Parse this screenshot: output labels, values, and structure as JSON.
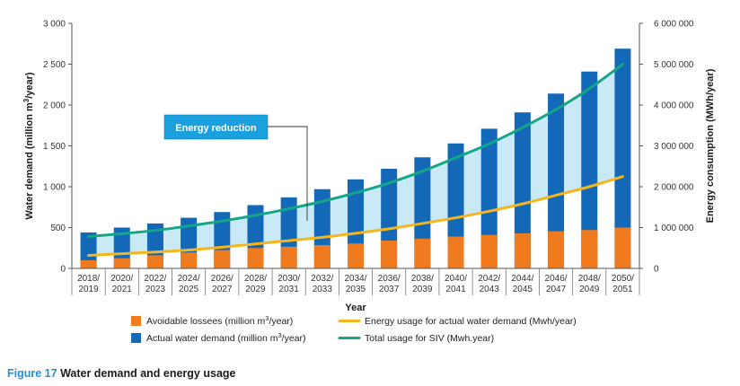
{
  "colors": {
    "avoidable": "#f07a1e",
    "actual": "#1468b8",
    "energy_actual": "#f5b61c",
    "total_siv": "#15a589",
    "band": "#c9e9f6",
    "annotation_box": "#1aa0de"
  },
  "chart_data": {
    "type": "bar",
    "categories": [
      [
        "2018/",
        "2019"
      ],
      [
        "2020/",
        "2021"
      ],
      [
        "2022/",
        "2023"
      ],
      [
        "2024/",
        "2025"
      ],
      [
        "2026/",
        "2027"
      ],
      [
        "2028/",
        "2029"
      ],
      [
        "2030/",
        "2031"
      ],
      [
        "2032/",
        "2033"
      ],
      [
        "2034/",
        "2035"
      ],
      [
        "2036/",
        "2037"
      ],
      [
        "2038/",
        "2039"
      ],
      [
        "2040/",
        "2041"
      ],
      [
        "2042/",
        "2043"
      ],
      [
        "2044/",
        "2045"
      ],
      [
        "2046/",
        "2047"
      ],
      [
        "2048/",
        "2049"
      ],
      [
        "2050/",
        "2051"
      ]
    ],
    "xlabel": "Year",
    "ylabel_left": {
      "pre": "Water demand (million m",
      "sup": "3",
      "post": "/year)"
    },
    "ylabel_right": "Energy consumption (MWh/year)",
    "ylim_left": [
      0,
      3000
    ],
    "ylim_right": [
      0,
      6000000
    ],
    "yticks_left": [
      "0",
      "500",
      "1 000",
      "1 500",
      "2 000",
      "2 500",
      "3 000"
    ],
    "yticks_right": [
      "0",
      "1 000 000",
      "2 000 000",
      "3 000 000",
      "4 000 000",
      "5 000 000",
      "6 000 000"
    ],
    "series": [
      {
        "name": "Avoidable lossees (million m3/year)",
        "type": "bar",
        "values": [
          100,
          125,
          160,
          195,
          225,
          250,
          265,
          285,
          305,
          340,
          365,
          390,
          410,
          430,
          455,
          470,
          500
        ]
      },
      {
        "name": "Actual water demand (million m3/year)",
        "type": "bar",
        "values": [
          440,
          500,
          550,
          620,
          690,
          775,
          870,
          970,
          1090,
          1220,
          1360,
          1530,
          1710,
          1910,
          2140,
          2410,
          2690
        ]
      },
      {
        "name": "Energy usage for actual water demand (Mwh/year)",
        "type": "line",
        "axis": "right",
        "values": [
          320000,
          360000,
          400000,
          450000,
          520000,
          600000,
          680000,
          760000,
          860000,
          970000,
          1100000,
          1240000,
          1400000,
          1580000,
          1790000,
          2000000,
          2250000
        ]
      },
      {
        "name": "Total usage for SIV (Mwh.year)",
        "type": "line",
        "axis": "right",
        "values": [
          780000,
          850000,
          930000,
          1040000,
          1160000,
          1300000,
          1460000,
          1640000,
          1850000,
          2090000,
          2380000,
          2710000,
          3050000,
          3450000,
          3890000,
          4400000,
          5000000
        ]
      }
    ],
    "annotation": "Energy reduction",
    "legend": {
      "placement": "bottom",
      "items": [
        {
          "pre": "Avoidable lossees (million m",
          "sup": "3",
          "post": "/year)",
          "kind": "box",
          "color": "avoidable"
        },
        {
          "pre": "Energy usage for actual water demand (Mwh/year)",
          "sup": "",
          "post": "",
          "kind": "line",
          "color": "energy_actual"
        },
        {
          "pre": "Actual water demand (million m",
          "sup": "3",
          "post": "/year)",
          "kind": "box",
          "color": "actual"
        },
        {
          "pre": "Total usage for SIV (Mwh.year)",
          "sup": "",
          "post": "",
          "kind": "line",
          "color": "total_siv"
        }
      ]
    }
  },
  "caption": {
    "number": "Figure 17",
    "text": "Water demand and energy usage"
  }
}
